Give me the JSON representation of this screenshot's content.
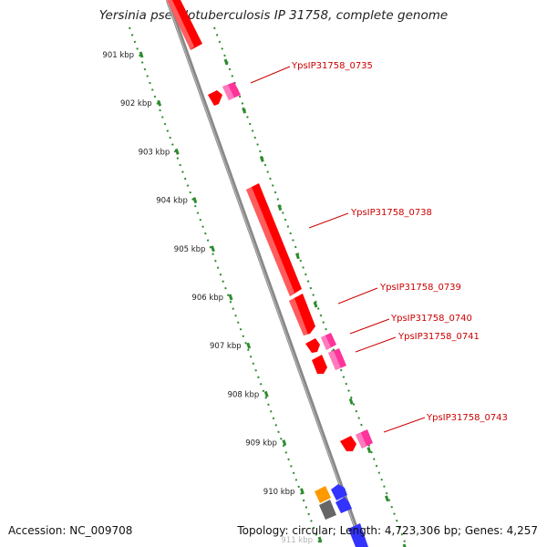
{
  "title": "Yersinia pseudotuberculosis IP 31758, complete genome",
  "footer": {
    "accession": "Accession: NC_009708",
    "topology": "Topology: circular; Length: 4,723,306 bp; Genes: 4,257"
  },
  "ticks": [
    "901 kbp",
    "902 kbp",
    "903 kbp",
    "904 kbp",
    "905 kbp",
    "906 kbp",
    "907 kbp",
    "908 kbp",
    "909 kbp",
    "910 kbp",
    "911 kbp"
  ],
  "gene_labels": [
    "YpsIP31758_0735",
    "YpsIP31758_0738",
    "YpsIP31758_0739",
    "YpsIP31758_0740",
    "YpsIP31758_0741",
    "YpsIP31758_0743"
  ],
  "colors": {
    "cds": "#ff0000",
    "mobile_element": "#ff3399",
    "rna": "#3333ff",
    "orange_feature": "#ff9900",
    "grey_feature": "#666666",
    "backbone": "#888888",
    "tick": "#2e8b2e",
    "label": "#cc0000"
  }
}
